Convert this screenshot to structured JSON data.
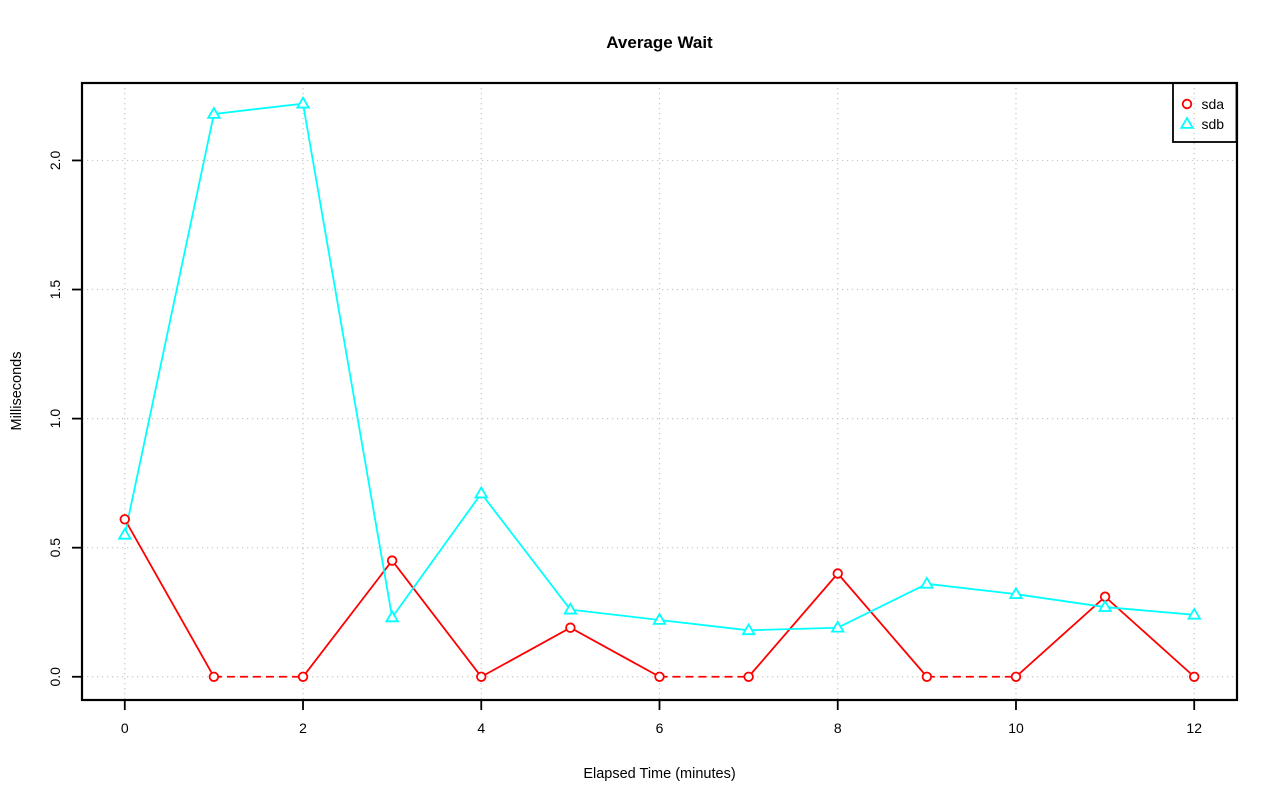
{
  "chart_data": {
    "type": "line",
    "title": "Average Wait",
    "xlabel": "Elapsed Time (minutes)",
    "ylabel": "Milliseconds",
    "x": [
      0,
      1,
      2,
      3,
      4,
      5,
      6,
      7,
      8,
      9,
      10,
      11,
      12
    ],
    "series": [
      {
        "name": "sda",
        "color": "#ff0000",
        "marker": "circle",
        "values": [
          0.61,
          0.0,
          0.0,
          0.45,
          0.0,
          0.19,
          0.0,
          0.0,
          0.4,
          0.0,
          0.0,
          0.31,
          0.0
        ]
      },
      {
        "name": "sdb",
        "color": "#00ffff",
        "marker": "triangle",
        "values": [
          0.55,
          2.18,
          2.22,
          0.23,
          0.71,
          0.26,
          0.22,
          0.18,
          0.19,
          0.36,
          0.32,
          0.27,
          0.24
        ]
      }
    ],
    "xticks": {
      "values": [
        0,
        2,
        4,
        6,
        8,
        10,
        12
      ],
      "labels": [
        "0",
        "2",
        "4",
        "6",
        "8",
        "10",
        "12"
      ]
    },
    "yticks": {
      "values": [
        0.0,
        0.5,
        1.0,
        1.5,
        2.0
      ],
      "labels": [
        "0.0",
        "0.5",
        "1.0",
        "1.5",
        "2.0"
      ]
    },
    "xlim": [
      -0.48,
      12.48
    ],
    "ylim": [
      -0.09,
      2.3
    ],
    "grid": "dotted",
    "grid_color": "#c6c6c6",
    "frame_color": "#000000",
    "background": "#ffffff",
    "zero_segments_dashed": true,
    "legend": {
      "position": "topright",
      "entries": [
        "sda",
        "sdb"
      ]
    }
  }
}
